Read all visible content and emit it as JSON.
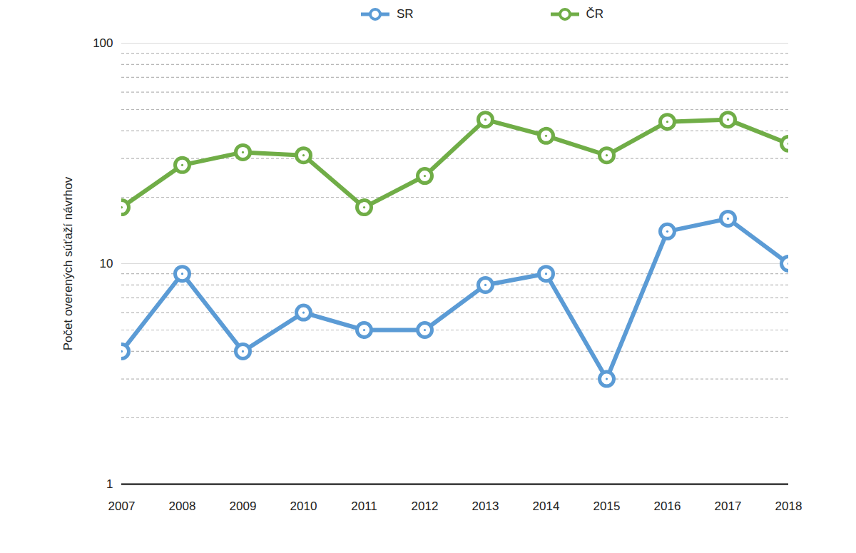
{
  "chart_data": {
    "type": "line",
    "y_label": "Počet overených súťaží návrhov",
    "categories": [
      "2007",
      "2008",
      "2009",
      "2010",
      "2011",
      "2012",
      "2013",
      "2014",
      "2015",
      "2016",
      "2017",
      "2018"
    ],
    "series": [
      {
        "name": "SR",
        "color": "#5b9bd5",
        "marker": "circle",
        "values": [
          4,
          9,
          4,
          6,
          5,
          5,
          8,
          9,
          3,
          14,
          16,
          10
        ]
      },
      {
        "name": "ČR",
        "color": "#70ad47",
        "marker": "circle",
        "values": [
          18,
          28,
          32,
          31,
          18,
          25,
          45,
          38,
          31,
          44,
          45,
          35
        ]
      }
    ],
    "ylim": [
      1,
      100
    ],
    "yticks": [
      1,
      10,
      100
    ],
    "log": "y",
    "grid": true,
    "legend": "top"
  }
}
